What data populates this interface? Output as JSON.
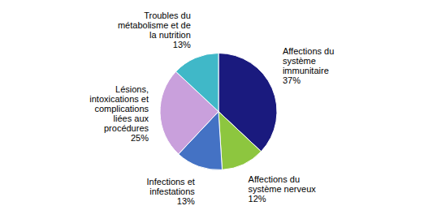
{
  "chart_data": {
    "type": "pie",
    "categories": [
      "Affections du\nsystème\nimmunitaire",
      "Affections du\nsystème nerveux",
      "Infections et\ninfestations",
      "Lésions,\nintoxications et\ncomplications\nliées aux\nprocédures",
      "Troubles du\nmétabolisme et de\nla nutrition"
    ],
    "values": [
      37,
      12,
      13,
      25,
      13
    ],
    "value_labels": [
      "37%",
      "12%",
      "13%",
      "25%",
      "13%"
    ],
    "colors": [
      "#1a1a7e",
      "#8dc63f",
      "#4472c4",
      "#c9a0dc",
      "#40b8c8"
    ],
    "data_labels": true
  }
}
